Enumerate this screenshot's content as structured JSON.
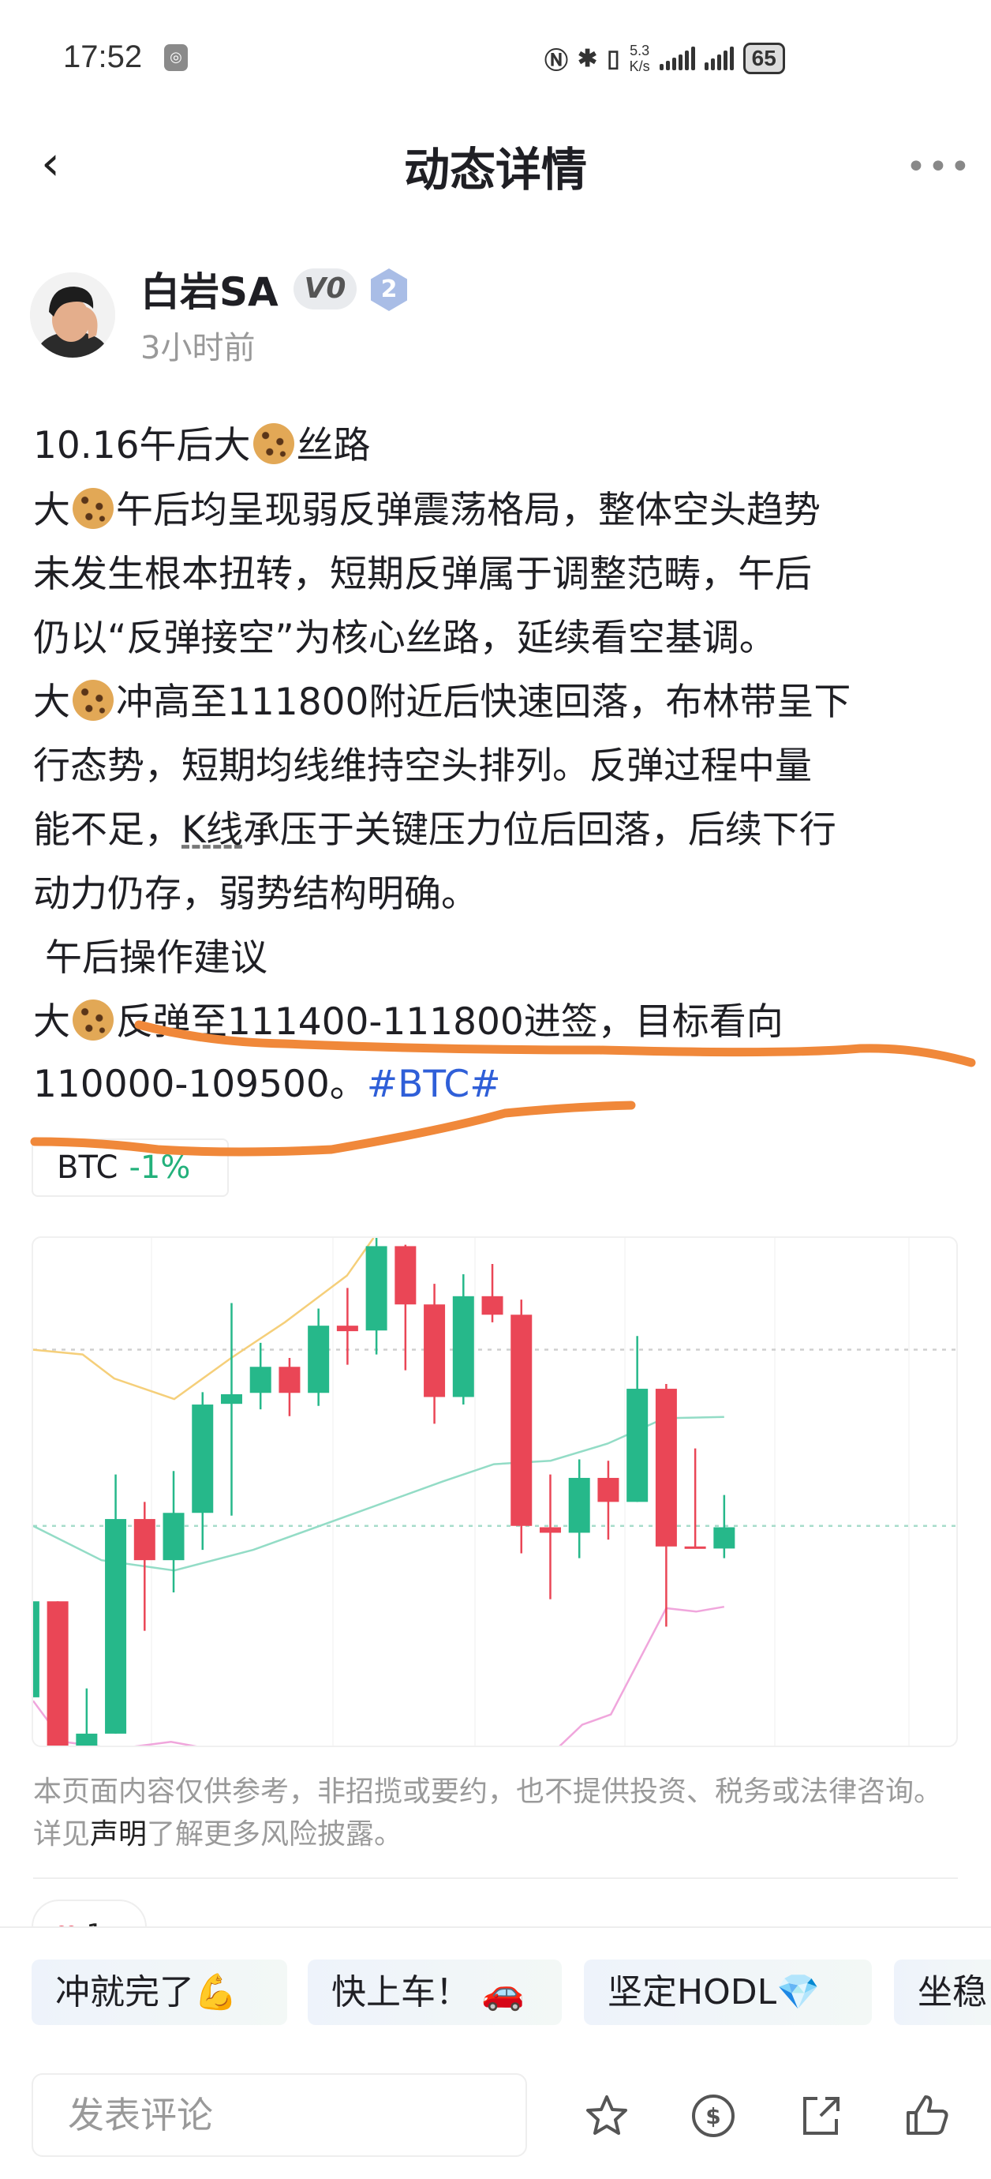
{
  "status_bar": {
    "time": "17:52",
    "net_speed_value": "5.3",
    "net_speed_unit": "K/s",
    "battery": "65",
    "icons": [
      "nfc-icon",
      "bluetooth-icon",
      "vibrate-icon",
      "signal-icon",
      "signal-icon"
    ]
  },
  "header": {
    "title": "动态详情",
    "back_icon": "chevron-left-icon",
    "more_icon": "more-dots-icon"
  },
  "author": {
    "name": "白岩SA",
    "vip_badge": "V0",
    "level_badge": "2",
    "time": "3小时前"
  },
  "post": {
    "lines": [
      [
        "10.16午后大",
        "🍪",
        "丝路"
      ],
      [
        "大",
        "🍪",
        "午后均呈现弱反弹震荡格局，整体空头趋势"
      ],
      [
        "未发生根本扭转，短期反弹属于调整范畴，午后"
      ],
      [
        "仍以“反弹接空”为核心丝路，延续看空基调。"
      ],
      [
        "大",
        "🍪",
        "冲高至111800附近后快速回落，布林带呈下"
      ],
      [
        "行态势，短期均线维持空头排列。反弹过程中量"
      ],
      [
        "能不足，",
        "K线",
        "承压于关键压力位后回落，后续下行"
      ],
      [
        "动力仍存，弱势结构明确。"
      ],
      [
        " 午后操作建议"
      ],
      [
        "大",
        "🍪",
        "反弹至111400-111800进签，目标看向"
      ],
      [
        "110000-109500。",
        "#BTC#"
      ]
    ],
    "coin_tag": {
      "symbol": "BTC",
      "change": "-1%",
      "change_color": "#23b17b"
    }
  },
  "chart_data": {
    "type": "candlestick",
    "colors": {
      "up": "#26b88a",
      "down": "#ea4656",
      "upper_band": "#f5cf7a",
      "middle_band": "#93dcc6",
      "lower_band": "#f0a6dc"
    },
    "candles": [
      {
        "o": 8.5,
        "h": 22.5,
        "l": 8.5,
        "c": 22.5
      },
      {
        "o": 22.5,
        "h": 22.5,
        "l": 0,
        "c": 1
      },
      {
        "o": 1,
        "h": 9.8,
        "l": 1,
        "c": 3.2
      },
      {
        "o": 3.2,
        "h": 41,
        "l": 3.2,
        "c": 34.5
      },
      {
        "o": 34.5,
        "h": 37,
        "l": 18.2,
        "c": 28.5
      },
      {
        "o": 28.5,
        "h": 41.5,
        "l": 23.8,
        "c": 35.4
      },
      {
        "o": 35.4,
        "h": 53,
        "l": 30,
        "c": 51.2
      },
      {
        "o": 51.3,
        "h": 66,
        "l": 35,
        "c": 52.7
      },
      {
        "o": 52.9,
        "h": 60.2,
        "l": 50.5,
        "c": 56.7
      },
      {
        "o": 56.7,
        "h": 58,
        "l": 49.5,
        "c": 52.9
      },
      {
        "o": 52.9,
        "h": 65.2,
        "l": 51,
        "c": 62.7
      },
      {
        "o": 62.7,
        "h": 68.2,
        "l": 57,
        "c": 61.9
      },
      {
        "o": 62,
        "h": 75.5,
        "l": 58.5,
        "c": 74.3
      },
      {
        "o": 74.3,
        "h": 74.5,
        "l": 56.2,
        "c": 65.8
      },
      {
        "o": 65.8,
        "h": 68.8,
        "l": 48.4,
        "c": 52.3
      },
      {
        "o": 52.3,
        "h": 70.2,
        "l": 51.2,
        "c": 67
      },
      {
        "o": 67,
        "h": 71.7,
        "l": 63.2,
        "c": 64.3
      },
      {
        "o": 64.3,
        "h": 66.5,
        "l": 29.5,
        "c": 33.5
      },
      {
        "o": 33.3,
        "h": 41,
        "l": 22.8,
        "c": 32.5
      },
      {
        "o": 32.5,
        "h": 43.2,
        "l": 28.8,
        "c": 40.5
      },
      {
        "o": 40.5,
        "h": 43,
        "l": 31.5,
        "c": 37
      },
      {
        "o": 37,
        "h": 61.2,
        "l": 37,
        "c": 53.5
      },
      {
        "o": 53.5,
        "h": 54.2,
        "l": 18.8,
        "c": 30.5
      },
      {
        "o": 30.5,
        "h": 44.8,
        "l": 30.2,
        "c": 30.2
      },
      {
        "o": 30.2,
        "h": 38,
        "l": 28.8,
        "c": 33.3
      }
    ],
    "upper_band": [
      [
        0.15,
        59.2
      ],
      [
        1.86,
        58.5
      ],
      [
        2.95,
        55
      ],
      [
        5.02,
        52
      ],
      [
        6.99,
        58
      ],
      [
        8.84,
        63.2
      ],
      [
        10.98,
        70
      ],
      [
        11.9,
        75.5
      ]
    ],
    "middle_band": [
      [
        0.15,
        33.5
      ],
      [
        2.51,
        28.5
      ],
      [
        5.02,
        27
      ],
      [
        7.75,
        30
      ],
      [
        11.03,
        35
      ],
      [
        14.3,
        40
      ],
      [
        16.05,
        42.5
      ],
      [
        18.01,
        43
      ],
      [
        19.98,
        45.5
      ],
      [
        21.94,
        49.2
      ],
      [
        24,
        49.4
      ]
    ],
    "lower_band": [
      [
        [
          0.15,
          8
        ],
        [
          1.2,
          2
        ],
        [
          3.06,
          1
        ],
        [
          4.91,
          2
        ],
        [
          6.22,
          1
        ]
      ],
      [
        [
          18.23,
          1
        ],
        [
          19.1,
          4.5
        ],
        [
          20.09,
          6
        ],
        [
          22,
          21.5
        ],
        [
          23.03,
          21
        ],
        [
          24,
          21.7
        ]
      ]
    ],
    "reference_lines": [
      59.2,
      33.5
    ],
    "grid": true
  },
  "disclaimer": {
    "before": "本页面内容仅供参考，非招揽或要约，也不提供投资、税务或法律咨询。详见",
    "link": "声明",
    "after": "了解更多风险披露。"
  },
  "reactions": {
    "heart_count": "1"
  },
  "quick_replies": [
    "冲就完了💪",
    "快上车！ 🚗",
    "坚定HODL💎",
    "坐稳"
  ],
  "comment": {
    "placeholder": "发表评论"
  },
  "actions": [
    "star-icon",
    "coin-icon",
    "share-icon",
    "thumbs-up-icon"
  ],
  "annotation_color": "#f0883a"
}
